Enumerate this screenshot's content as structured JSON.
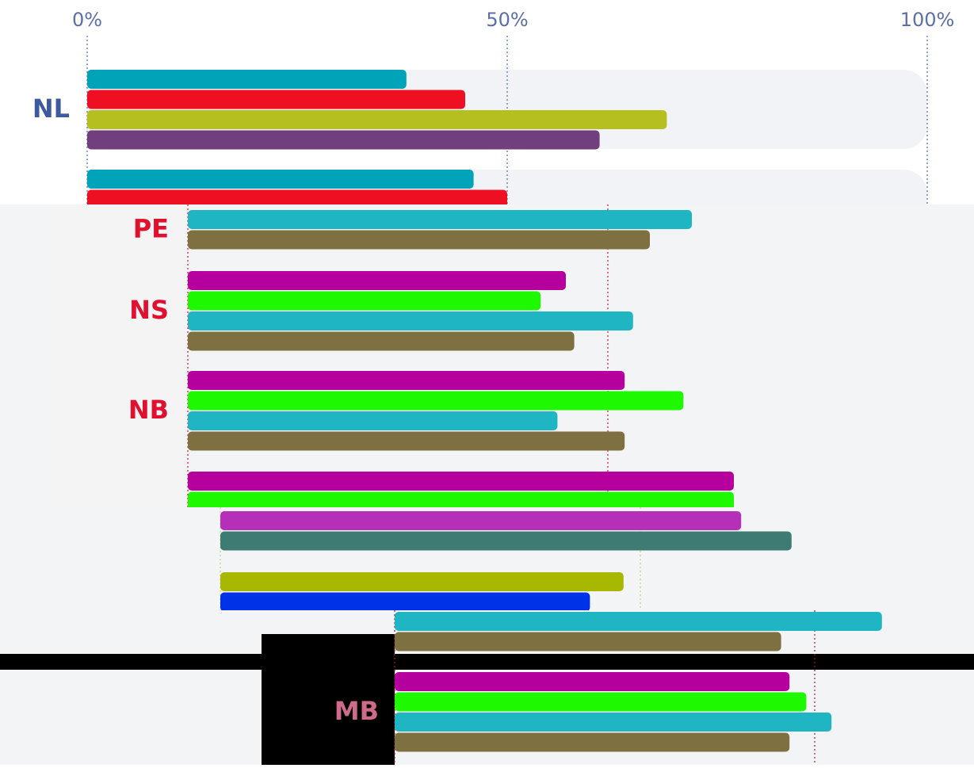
{
  "chart_data": [
    {
      "type": "bar",
      "orientation": "horizontal",
      "label_color": "#3d5a9e",
      "categories": [
        "NL",
        null
      ],
      "xlim": [
        0,
        100
      ],
      "xticks": [
        {
          "value": 0,
          "label": "0%"
        },
        {
          "value": 50,
          "label": "50%"
        },
        {
          "value": 100,
          "label": "100%"
        }
      ],
      "series": [
        {
          "color": "#00a3b8",
          "values": [
            38,
            46
          ]
        },
        {
          "color": "#ee1022",
          "values": [
            45,
            50
          ]
        },
        {
          "color": "#b5c020",
          "values": [
            69,
            null
          ]
        },
        {
          "color": "#723f7e",
          "values": [
            61,
            null
          ]
        }
      ]
    },
    {
      "type": "bar",
      "orientation": "horizontal",
      "label_color": "#e0102f",
      "categories": [
        "PE",
        "NS",
        "NB",
        null
      ],
      "xlim": [
        0,
        100
      ],
      "xticks": [
        0,
        50
      ],
      "series": [
        {
          "color": "#b5009e",
          "values": [
            null,
            45,
            52,
            65
          ]
        },
        {
          "color": "#1ef800",
          "values": [
            null,
            42,
            59,
            65
          ]
        },
        {
          "color": "#1fb5c2",
          "values": [
            60,
            53,
            44,
            null
          ]
        },
        {
          "color": "#7e7040",
          "values": [
            55,
            46,
            52,
            null
          ]
        }
      ]
    },
    {
      "type": "bar",
      "orientation": "horizontal",
      "label_color": "#3d5a9e",
      "categories": [
        null,
        null
      ],
      "xlim": [
        0,
        100
      ],
      "xticks": [
        0,
        50
      ],
      "series": [
        {
          "color": "#b52fb8",
          "values": [
            62,
            null
          ]
        },
        {
          "color": "#3e7b72",
          "values": [
            68,
            null
          ]
        },
        {
          "color": "#a8b800",
          "values": [
            null,
            48
          ]
        },
        {
          "color": "#0033e8",
          "values": [
            null,
            44
          ]
        }
      ]
    },
    {
      "type": "bar",
      "orientation": "horizontal",
      "label_color": "#d06a8a",
      "categories": [
        null,
        "MB"
      ],
      "xlim": [
        0,
        100
      ],
      "xticks": [
        0,
        50
      ],
      "series": [
        {
          "color": "#b5009e",
          "values": [
            null,
            47
          ]
        },
        {
          "color": "#1ef800",
          "values": [
            null,
            49
          ]
        },
        {
          "color": "#1fb5c2",
          "values": [
            58,
            52
          ]
        },
        {
          "color": "#7e7040",
          "values": [
            46,
            47
          ]
        }
      ]
    }
  ]
}
